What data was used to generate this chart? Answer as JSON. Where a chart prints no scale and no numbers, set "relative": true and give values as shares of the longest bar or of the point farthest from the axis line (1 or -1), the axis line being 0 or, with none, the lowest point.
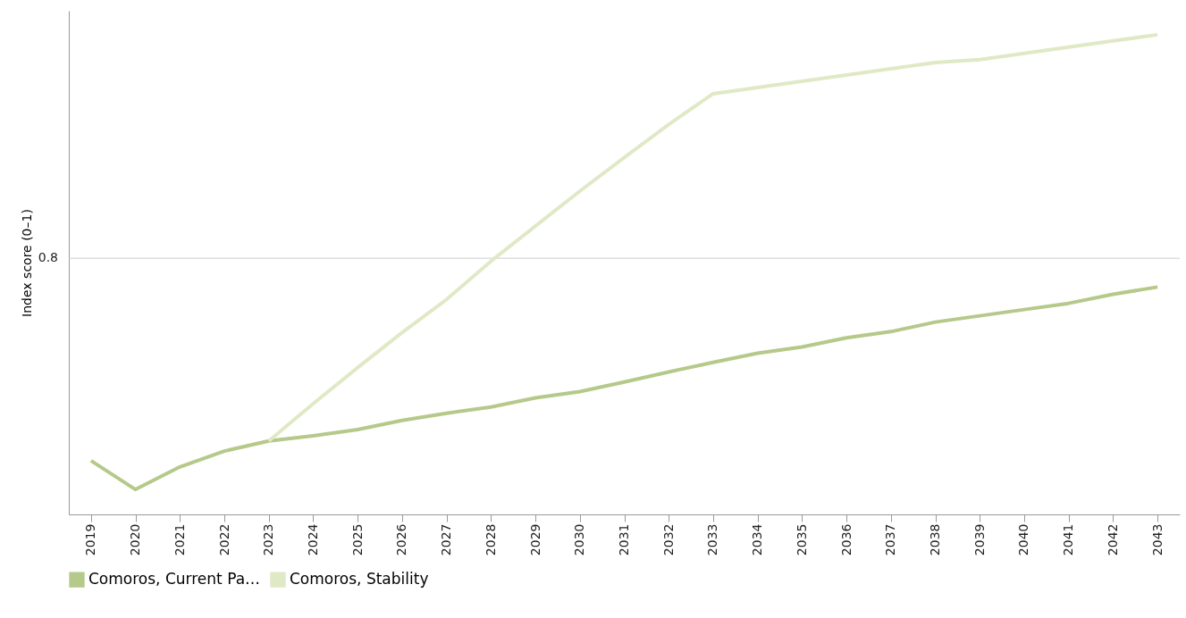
{
  "chart_data": {
    "type": "line",
    "relative": true,
    "ylabel": "Index score (0–1)",
    "categories": [
      "2019",
      "2020",
      "2021",
      "2022",
      "2023",
      "2024",
      "2025",
      "2026",
      "2027",
      "2028",
      "2029",
      "2030",
      "2031",
      "2032",
      "2033",
      "2034",
      "2035",
      "2036",
      "2037",
      "2038",
      "2039",
      "2040",
      "2041",
      "2042",
      "2043"
    ],
    "series": [
      {
        "name": "Comoros, Current Pa…",
        "color": "#b5c98a",
        "values": [
          0.112,
          0.052,
          0.099,
          0.132,
          0.153,
          0.164,
          0.177,
          0.196,
          0.211,
          0.224,
          0.243,
          0.256,
          0.276,
          0.297,
          0.317,
          0.336,
          0.349,
          0.368,
          0.381,
          0.401,
          0.414,
          0.427,
          0.44,
          0.459,
          0.474
        ]
      },
      {
        "name": "Comoros, Stability",
        "color": "#e0e9c6",
        "values": [
          null,
          null,
          null,
          null,
          0.153,
          0.231,
          0.306,
          0.379,
          0.448,
          0.528,
          0.601,
          0.674,
          0.744,
          0.813,
          0.877,
          0.89,
          0.903,
          0.916,
          0.929,
          0.942,
          0.948,
          0.961,
          0.974,
          0.987,
          1
        ]
      }
    ],
    "ref_lines": [
      {
        "axis": "y",
        "value": 0.534,
        "color": "#cccccc"
      }
    ],
    "annotations": [
      "0.8"
    ],
    "legend": "bottom left",
    "line_style": "solid"
  }
}
